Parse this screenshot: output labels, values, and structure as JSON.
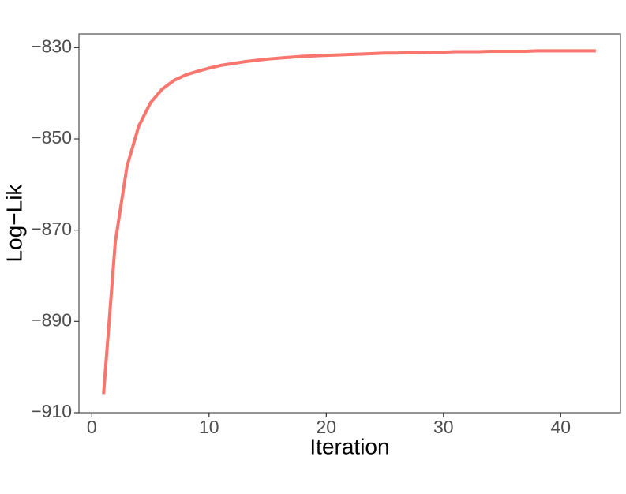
{
  "chart_data": {
    "type": "line",
    "x_label": "Iteration",
    "y_label": "Log−Lik",
    "x": [
      1,
      2,
      3,
      4,
      5,
      6,
      7,
      8,
      9,
      10,
      11,
      12,
      13,
      14,
      15,
      16,
      17,
      18,
      19,
      20,
      21,
      22,
      23,
      24,
      25,
      26,
      27,
      28,
      29,
      30,
      31,
      32,
      33,
      34,
      35,
      36,
      37,
      38,
      39,
      40,
      41,
      42,
      43
    ],
    "series": [
      {
        "color": "#f8766d",
        "values": [
          -905.9,
          -872.6,
          -856.0,
          -847.2,
          -842.1,
          -839.1,
          -837.2,
          -836.0,
          -835.2,
          -834.5,
          -833.9,
          -833.5,
          -833.1,
          -832.8,
          -832.5,
          -832.3,
          -832.1,
          -831.9,
          -831.8,
          -831.7,
          -831.6,
          -831.5,
          -831.4,
          -831.3,
          -831.2,
          -831.2,
          -831.1,
          -831.1,
          -831.0,
          -831.0,
          -830.9,
          -830.9,
          -830.9,
          -830.8,
          -830.8,
          -830.8,
          -830.8,
          -830.7,
          -830.7,
          -830.7,
          -830.7,
          -830.7,
          -830.7
        ]
      }
    ],
    "xlim": [
      -1.1,
      45.1
    ],
    "ylim": [
      -910,
      -827
    ],
    "xticks": [
      0,
      10,
      20,
      30,
      40
    ],
    "yticks": [
      {
        "value": -830,
        "label": "−830"
      },
      {
        "value": -850,
        "label": "−850"
      },
      {
        "value": -870,
        "label": "−870"
      },
      {
        "value": -890,
        "label": "−890"
      },
      {
        "value": -910,
        "label": "−910"
      }
    ],
    "grid": false
  }
}
